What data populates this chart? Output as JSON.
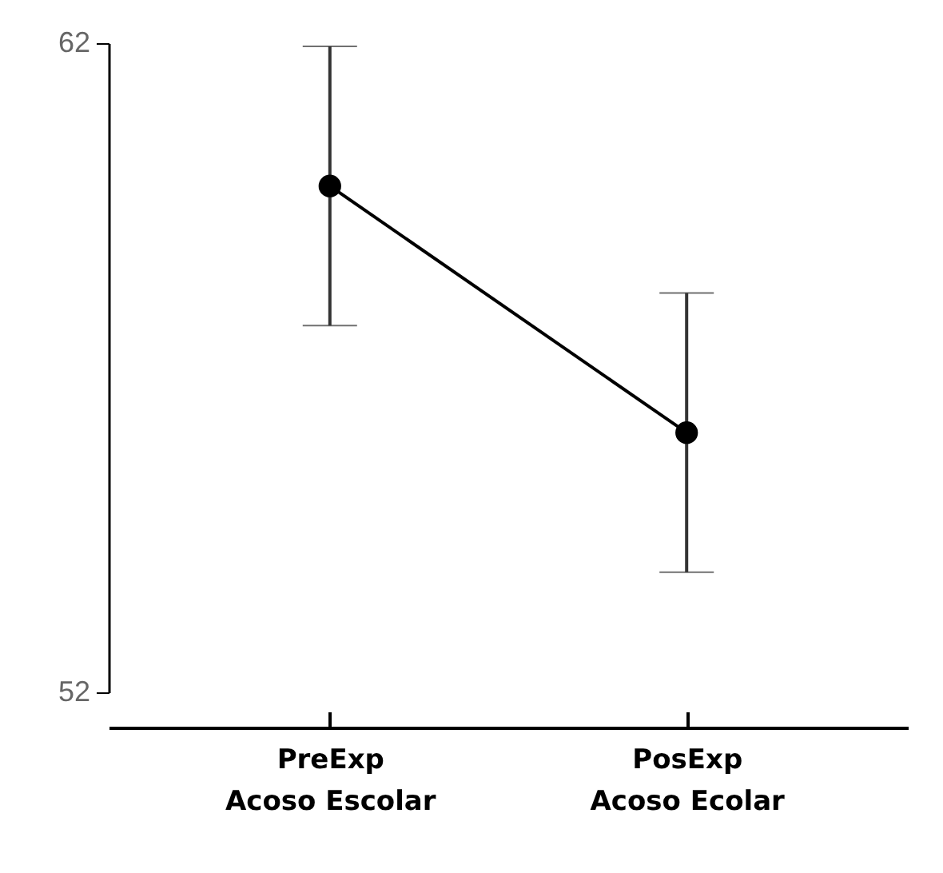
{
  "chart_data": {
    "type": "line",
    "categories": [
      "PreExp\nAcoso Escolar",
      "PosExp\nAcoso Ecolar"
    ],
    "series": [
      {
        "color": "#000000",
        "values": [
          59.8,
          56.0
        ],
        "errors": [
          2.15,
          2.15
        ]
      }
    ],
    "ylim": [
      52,
      62
    ],
    "yticks": [
      52,
      62
    ],
    "grid": false,
    "legend": false,
    "marker": "circle",
    "line_style": "solid"
  }
}
